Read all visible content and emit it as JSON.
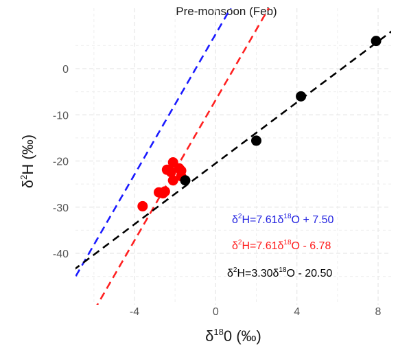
{
  "chart_data": {
    "type": "scatter",
    "title": "Pre-monsoon (Feb)",
    "xlabel": {
      "prefix": "δ",
      "sup": "18",
      "rest": "0 (‰)"
    },
    "ylabel": {
      "prefix": "δ",
      "sup": "2",
      "rest": "H (‰)"
    },
    "xlim": [
      -6.5,
      8.4
    ],
    "ylim": [
      -50,
      10
    ],
    "xticks": [
      -4,
      0,
      4,
      8
    ],
    "yticks": [
      -40,
      -30,
      -20,
      -10,
      0
    ],
    "xtick_labels": [
      "-4",
      "0",
      "4",
      "8"
    ],
    "ytick_labels": [
      "-40",
      "-30",
      "-20",
      "-10",
      "0"
    ],
    "grid": true,
    "series": [
      {
        "color": "#ff0000",
        "points": [
          {
            "x": -3.6,
            "y": -29.8
          },
          {
            "x": -2.8,
            "y": -26.8
          },
          {
            "x": -2.6,
            "y": -27.0
          },
          {
            "x": -2.5,
            "y": -26.6
          },
          {
            "x": -2.4,
            "y": -21.9
          },
          {
            "x": -2.2,
            "y": -22.4
          },
          {
            "x": -2.1,
            "y": -20.3
          },
          {
            "x": -2.1,
            "y": -24.2
          },
          {
            "x": -1.8,
            "y": -21.6
          },
          {
            "x": -1.7,
            "y": -23.3
          },
          {
            "x": -1.7,
            "y": -22.1
          }
        ]
      },
      {
        "color": "#000000",
        "points": [
          {
            "x": -1.5,
            "y": -24.2
          },
          {
            "x": 2.0,
            "y": -15.6
          },
          {
            "x": 4.2,
            "y": -6.0
          },
          {
            "x": 7.9,
            "y": 6.0
          }
        ]
      }
    ],
    "lines": [
      {
        "slope": 7.61,
        "intercept": 7.5,
        "color": "#1a1aff",
        "dash": true
      },
      {
        "slope": 7.61,
        "intercept": -6.78,
        "color": "#ff2020",
        "dash": true
      },
      {
        "slope": 3.3,
        "intercept": -20.5,
        "color": "#000000",
        "dash": true
      }
    ],
    "equations": [
      {
        "lhs": "δ",
        "sup1": "2",
        "mid": "H=7.61δ",
        "sup2": "18",
        "rhs": "O + 7.50",
        "color": "#1f1fe0"
      },
      {
        "lhs": "δ",
        "sup1": "2",
        "mid": "H=7.61δ",
        "sup2": "18",
        "rhs": "O - 6.78",
        "color": "#ff1a1a"
      },
      {
        "lhs": "δ",
        "sup1": "2",
        "mid": "H=3.30δ",
        "sup2": "18",
        "rhs": "O - 20.50",
        "color": "#000000"
      }
    ]
  }
}
